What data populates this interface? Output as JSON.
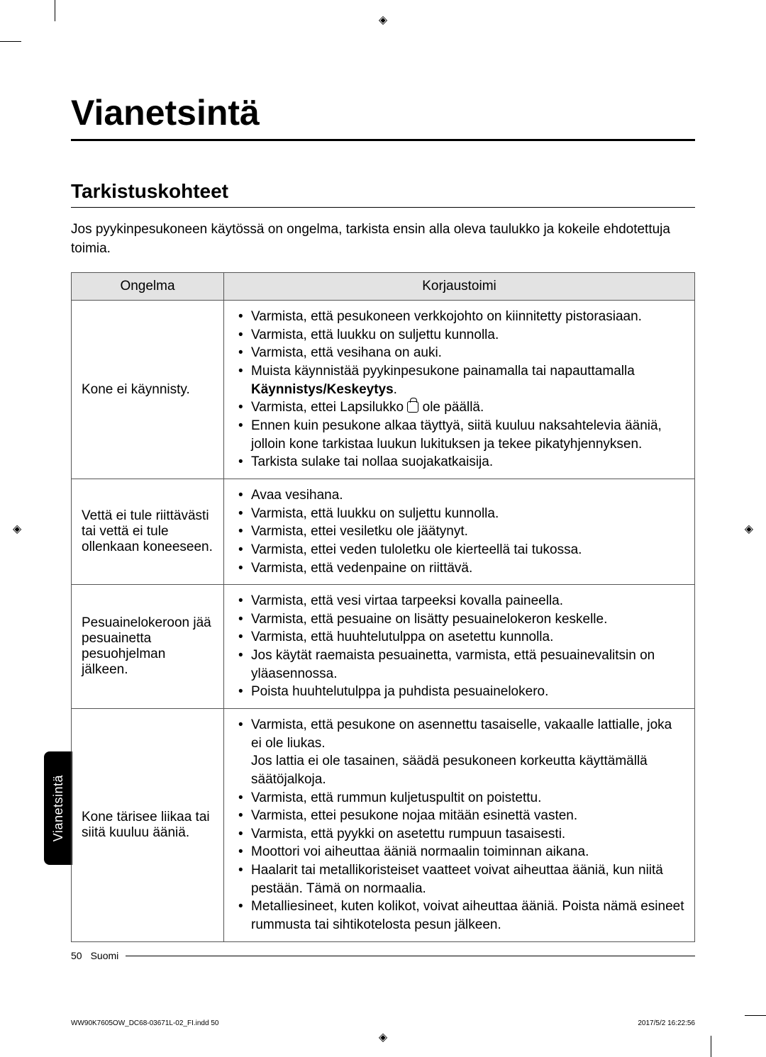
{
  "registration_glyph": "◈",
  "sidebar_label": "Vianetsintä",
  "title": "Vianetsintä",
  "section_heading": "Tarkistuskohteet",
  "intro": "Jos pyykinpesukoneen käytössä on ongelma, tarkista ensin alla oleva taulukko ja kokeile ehdotettuja toimia.",
  "table": {
    "headers": {
      "problem": "Ongelma",
      "action": "Korjaustoimi"
    },
    "rows": [
      {
        "problem": "Kone ei käynnisty.",
        "actions_html": [
          "Varmista, että pesukoneen verkkojohto on kiinnitetty pistorasiaan.",
          "Varmista, että luukku on suljettu kunnolla.",
          "Varmista, että vesihana on auki.",
          "Muista käynnistää pyykinpesukone painamalla tai napauttamalla <span class=\"bold\">Käynnistys/Keskeytys</span>.",
          "Varmista, ettei Lapsilukko <span class=\"lock-icon\" data-name=\"lock-icon\" data-interactable=\"false\"></span> ole päällä.",
          "Ennen kuin pesukone alkaa täyttyä, siitä kuuluu naksahtelevia ääniä, jolloin kone tarkistaa luukun lukituksen ja tekee pikatyhjennyksen.",
          "Tarkista sulake tai nollaa suojakatkaisija."
        ]
      },
      {
        "problem": "Vettä ei tule riittävästi tai vettä ei tule ollenkaan koneeseen.",
        "actions_html": [
          "Avaa vesihana.",
          "Varmista, että luukku on suljettu kunnolla.",
          "Varmista, ettei vesiletku ole jäätynyt.",
          "Varmista, ettei veden tuloletku ole kierteellä tai tukossa.",
          "Varmista, että vedenpaine on riittävä."
        ]
      },
      {
        "problem": "Pesuainelokeroon jää pesuainetta pesuohjelman jälkeen.",
        "actions_html": [
          "Varmista, että vesi virtaa tarpeeksi kovalla paineella.",
          "Varmista, että pesuaine on lisätty pesuainelokeron keskelle.",
          "Varmista, että huuhtelutulppa on asetettu kunnolla.",
          "Jos käytät raemaista pesuainetta, varmista, että pesuainevalitsin on yläasennossa.",
          "Poista huuhtelutulppa ja puhdista pesuainelokero."
        ]
      },
      {
        "problem": "Kone tärisee liikaa tai siitä kuuluu ääniä.",
        "actions_html": [
          "Varmista, että pesukone on asennettu tasaiselle, vakaalle lattialle, joka ei ole liukas.<br>Jos lattia ei ole tasainen, säädä pesukoneen korkeutta käyttämällä säätöjalkoja.",
          "Varmista, että rummun kuljetuspultit on poistettu.",
          "Varmista, ettei pesukone nojaa mitään esinettä vasten.",
          "Varmista, että pyykki on asetettu rumpuun tasaisesti.",
          "Moottori voi aiheuttaa ääniä normaalin toiminnan aikana.",
          "Haalarit tai metallikoristeiset vaatteet voivat aiheuttaa ääniä, kun niitä pestään. Tämä on normaalia.",
          "Metalliesineet, kuten kolikot, voivat aiheuttaa ääniä. Poista nämä esineet rummusta tai sihtikotelosta pesun jälkeen."
        ]
      }
    ]
  },
  "footer": {
    "page_number": "50",
    "language": "Suomi"
  },
  "print_info": {
    "file": "WW90K7605OW_DC68-03671L-02_FI.indd   50",
    "timestamp": "2017/5/2   16:22:56"
  }
}
